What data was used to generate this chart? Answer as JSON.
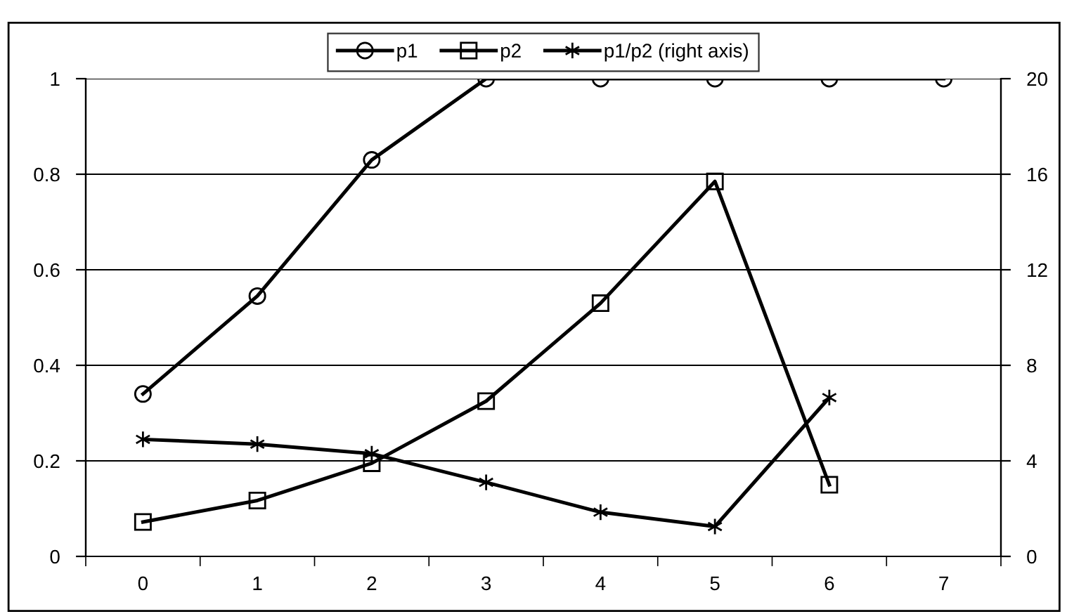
{
  "chart_data": {
    "type": "line",
    "categories": [
      "0",
      "1",
      "2",
      "3",
      "4",
      "5",
      "6",
      "7"
    ],
    "series": [
      {
        "name": "p1",
        "color": "#000000",
        "marker": "circle",
        "values": [
          0.34,
          0.545,
          0.83,
          1,
          1,
          1,
          1,
          1
        ]
      },
      {
        "name": "p2",
        "color": "#000000",
        "marker": "square",
        "values": [
          0.072,
          0.117,
          0.195,
          0.325,
          0.53,
          0.785,
          0.15,
          null
        ]
      },
      {
        "name": "p1/p2 (right axis)",
        "color": "#000000",
        "marker": "cross",
        "axis": "y2",
        "values": [
          4.9,
          4.7,
          4.3,
          3.1,
          1.85,
          1.25,
          6.65,
          null
        ]
      }
    ],
    "ylim": [
      0,
      1
    ],
    "yticks": [
      0,
      0.2,
      0.4,
      0.6,
      0.8,
      1
    ],
    "y2lim": [
      0,
      20
    ],
    "y2ticks": [
      0,
      4,
      8,
      12,
      16,
      20
    ],
    "grid": "y",
    "legend": "top",
    "line_style": "solid"
  }
}
